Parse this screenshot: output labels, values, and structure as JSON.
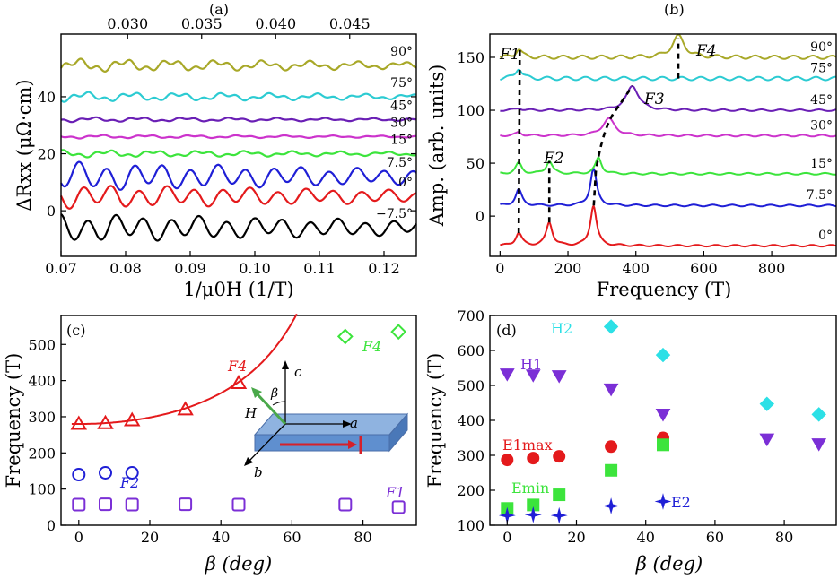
{
  "panels": {
    "a": {
      "label": "(a)",
      "xlabel": "1/μ0H (1/T)",
      "ylabel": "ΔRxx (μΩ·cm)",
      "xlim": [
        0.07,
        0.125
      ],
      "ylim": [
        -16,
        62
      ],
      "xticks": [
        0.07,
        0.08,
        0.09,
        0.1,
        0.11,
        0.12
      ],
      "xtick_labels": [
        "0.07",
        "0.08",
        "0.09",
        "0.10",
        "0.11",
        "0.12"
      ],
      "yticks": [
        0,
        20,
        40
      ],
      "ytick_labels": [
        "0",
        "20",
        "40"
      ],
      "top_ticks": [
        0.03,
        0.035,
        0.04,
        0.045
      ],
      "top_tick_labels": [
        "0.030",
        "0.035",
        "0.040",
        "0.045"
      ],
      "series": [
        {
          "name": "-7.5°",
          "label": "−7.5°",
          "color": "#000000",
          "offset": -6,
          "amp": 4.5
        },
        {
          "name": "0°",
          "label": "0°",
          "color": "#e41a1c",
          "offset": 5,
          "amp": 3.8
        },
        {
          "name": "7.5°",
          "label": "7.5°",
          "color": "#1f1fd6",
          "offset": 12,
          "amp": 4.6
        },
        {
          "name": "15°",
          "label": "15°",
          "color": "#3ce43c",
          "offset": 20,
          "amp": 1.2
        },
        {
          "name": "30°",
          "label": "30°",
          "color": "#cc33cc",
          "offset": 26,
          "amp": 0.6
        },
        {
          "name": "45°",
          "label": "45°",
          "color": "#6a1fb5",
          "offset": 32,
          "amp": 0.8
        },
        {
          "name": "75°",
          "label": "75°",
          "color": "#2ccbd2",
          "offset": 40,
          "amp": 1.6
        },
        {
          "name": "90°",
          "label": "90°",
          "color": "#a8a828",
          "offset": 51,
          "amp": 2.2
        }
      ]
    },
    "b": {
      "label": "(b)",
      "xlabel": "Frequency (T)",
      "ylabel": "Amp. (arb. units)",
      "xlim": [
        -30,
        990
      ],
      "ylim": [
        -38,
        172
      ],
      "xticks": [
        0,
        200,
        400,
        600,
        800
      ],
      "xtick_labels": [
        "0",
        "200",
        "400",
        "600",
        "800"
      ],
      "yticks": [
        0,
        50,
        100,
        150
      ],
      "ytick_labels": [
        "0",
        "50",
        "100",
        "150"
      ],
      "series": [
        {
          "name": "0°",
          "label": "0°",
          "color": "#e41a1c",
          "base": -28,
          "peaks": [
            [
              55,
              12
            ],
            [
              145,
              22
            ],
            [
              275,
              38
            ]
          ]
        },
        {
          "name": "7.5°",
          "label": "7.5°",
          "color": "#1f1fd6",
          "base": 10,
          "peaks": [
            [
              55,
              15
            ],
            [
              275,
              35
            ]
          ]
        },
        {
          "name": "15°",
          "label": "15°",
          "color": "#3ce43c",
          "base": 40,
          "peaks": [
            [
              55,
              10
            ],
            [
              145,
              12
            ],
            [
              290,
              15
            ]
          ]
        },
        {
          "name": "30°",
          "label": "30°",
          "color": "#cc33cc",
          "base": 76,
          "peaks": [
            [
              55,
              3
            ],
            [
              320,
              16
            ]
          ]
        },
        {
          "name": "45°",
          "label": "45°",
          "color": "#6a1fb5",
          "base": 100,
          "peaks": [
            [
              55,
              2
            ],
            [
              390,
              23
            ]
          ]
        },
        {
          "name": "75°",
          "label": "75°",
          "color": "#2ccbd2",
          "base": 130,
          "peaks": [
            [
              55,
              10
            ]
          ]
        },
        {
          "name": "90°",
          "label": "90°",
          "color": "#a8a828",
          "base": 150,
          "peaks": [
            [
              55,
              8
            ],
            [
              525,
              20
            ]
          ]
        }
      ],
      "peak_labels": {
        "F1": "F1",
        "F2": "F2",
        "F3": "F3",
        "F4": "F4"
      }
    },
    "c": {
      "label": "(c)",
      "xlabel": "β (deg)",
      "ylabel": "Frequency (T)",
      "xlim": [
        -5,
        95
      ],
      "ylim": [
        0,
        580
      ],
      "xticks": [
        0,
        20,
        40,
        60,
        80
      ],
      "xtick_labels": [
        "0",
        "20",
        "40",
        "60",
        "80"
      ],
      "yticks": [
        0,
        100,
        200,
        300,
        400,
        500
      ],
      "ytick_labels": [
        "0",
        "100",
        "200",
        "300",
        "400",
        "500"
      ],
      "series": [
        {
          "name": "F1",
          "label": "F1",
          "marker": "square",
          "color": "#7b2fd6",
          "x": [
            0,
            7.5,
            15,
            30,
            45,
            75,
            90
          ],
          "y": [
            57,
            58,
            57,
            58,
            57,
            57,
            50
          ]
        },
        {
          "name": "F2",
          "label": "F2",
          "marker": "circle",
          "color": "#1f1fd6",
          "x": [
            0,
            7.5,
            15
          ],
          "y": [
            140,
            145,
            145
          ]
        },
        {
          "name": "F4",
          "label": "F4",
          "marker": "triangle",
          "color": "#e41a1c",
          "x": [
            0,
            7.5,
            15,
            30,
            45
          ],
          "y": [
            280,
            282,
            290,
            320,
            393
          ]
        },
        {
          "name": "F4 high",
          "label": "F4",
          "marker": "diamond",
          "color": "#3ce43c",
          "x": [
            75,
            90
          ],
          "y": [
            522,
            535
          ]
        }
      ],
      "fit": {
        "color": "#e41a1c",
        "f0": 280
      },
      "inset": {
        "axis_c": "c",
        "axis_a": "a",
        "axis_b": "b",
        "field": "H",
        "angle": "β"
      }
    },
    "d": {
      "label": "(d)",
      "xlabel": "β (deg)",
      "ylabel": "Frequency (T)",
      "xlim": [
        -5,
        95
      ],
      "ylim": [
        100,
        700
      ],
      "xticks": [
        0,
        20,
        40,
        60,
        80
      ],
      "xtick_labels": [
        "0",
        "20",
        "40",
        "60",
        "80"
      ],
      "yticks": [
        100,
        200,
        300,
        400,
        500,
        600,
        700
      ],
      "ytick_labels": [
        "100",
        "200",
        "300",
        "400",
        "500",
        "600",
        "700"
      ],
      "series": [
        {
          "name": "H2",
          "label": "H2",
          "marker": "diamond",
          "color": "#2ce0e6",
          "x": [
            30,
            45,
            75,
            90
          ],
          "y": [
            668,
            587,
            447,
            417
          ]
        },
        {
          "name": "H1",
          "label": "H1",
          "marker": "triangle-down",
          "color": "#7b2fd6",
          "x": [
            0,
            7.5,
            15,
            30,
            45,
            75,
            90
          ],
          "y": [
            533,
            530,
            528,
            490,
            418,
            347,
            333
          ]
        },
        {
          "name": "E1max",
          "label": "E1max",
          "marker": "circle",
          "color": "#e41a1c",
          "x": [
            0,
            7.5,
            15,
            30,
            45
          ],
          "y": [
            287,
            292,
            297,
            325,
            350
          ]
        },
        {
          "name": "Emin",
          "label": "Emin",
          "marker": "square",
          "color": "#3ce43c",
          "x": [
            0,
            7.5,
            15,
            30,
            45
          ],
          "y": [
            148,
            158,
            187,
            257,
            330
          ]
        },
        {
          "name": "E2",
          "label": "E2",
          "marker": "star",
          "color": "#1f1fd6",
          "x": [
            0,
            7.5,
            15,
            30,
            45
          ],
          "y": [
            128,
            130,
            128,
            155,
            168
          ]
        }
      ]
    }
  },
  "chart_data": [
    {
      "type": "line",
      "title": "(a)",
      "xlabel": "1/μ0H (1/T)",
      "ylabel": "ΔRxx (μΩ·cm)",
      "x_range": [
        0.07,
        0.125
      ],
      "series_names": [
        "-7.5°",
        "0°",
        "7.5°",
        "15°",
        "30°",
        "45°",
        "75°",
        "90°"
      ]
    },
    {
      "type": "line",
      "title": "(b)",
      "xlabel": "Frequency (T)",
      "ylabel": "Amp. (arb. units)",
      "x_range": [
        0,
        990
      ],
      "peaks": {
        "F1": 55,
        "F2": 145,
        "F3": 390,
        "F4": 525
      }
    },
    {
      "type": "scatter",
      "title": "(c)",
      "xlabel": "β (deg)",
      "ylabel": "Frequency (T)",
      "series": [
        {
          "name": "F1",
          "x": [
            0,
            7.5,
            15,
            30,
            45,
            75,
            90
          ],
          "y": [
            57,
            58,
            57,
            58,
            57,
            57,
            50
          ]
        },
        {
          "name": "F2",
          "x": [
            0,
            7.5,
            15
          ],
          "y": [
            140,
            145,
            145
          ]
        },
        {
          "name": "F4",
          "x": [
            0,
            7.5,
            15,
            30,
            45,
            75,
            90
          ],
          "y": [
            280,
            282,
            290,
            320,
            393,
            522,
            535
          ]
        }
      ]
    },
    {
      "type": "scatter",
      "title": "(d)",
      "xlabel": "β (deg)",
      "ylabel": "Frequency (T)",
      "series": [
        {
          "name": "H2",
          "x": [
            30,
            45,
            75,
            90
          ],
          "y": [
            668,
            587,
            447,
            417
          ]
        },
        {
          "name": "H1",
          "x": [
            0,
            7.5,
            15,
            30,
            45,
            75,
            90
          ],
          "y": [
            533,
            530,
            528,
            490,
            418,
            347,
            333
          ]
        },
        {
          "name": "E1max",
          "x": [
            0,
            7.5,
            15,
            30,
            45
          ],
          "y": [
            287,
            292,
            297,
            325,
            350
          ]
        },
        {
          "name": "Emin",
          "x": [
            0,
            7.5,
            15,
            30,
            45
          ],
          "y": [
            148,
            158,
            187,
            257,
            330
          ]
        },
        {
          "name": "E2",
          "x": [
            0,
            7.5,
            15,
            30,
            45
          ],
          "y": [
            128,
            130,
            128,
            155,
            168
          ]
        }
      ]
    }
  ]
}
